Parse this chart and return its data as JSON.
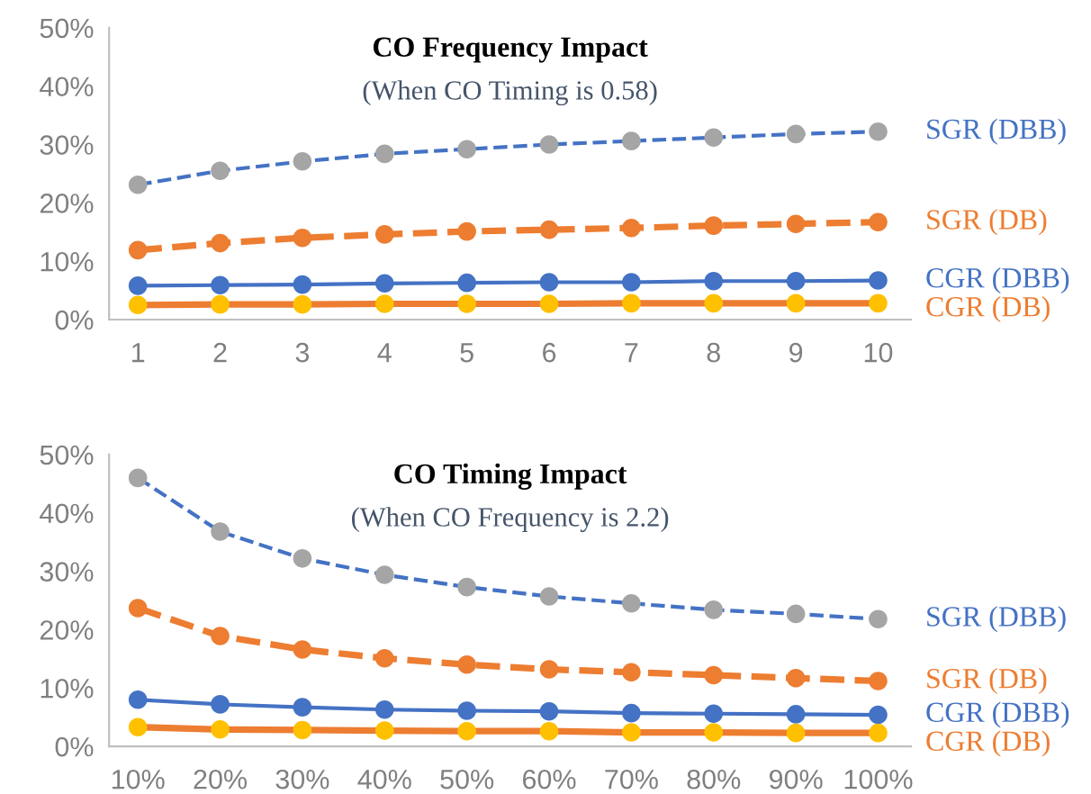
{
  "chart_data": [
    {
      "type": "line",
      "title": "CO Frequency Impact",
      "subtitle": "(When CO Timing is 0.58)",
      "categories": [
        "1",
        "2",
        "3",
        "4",
        "5",
        "6",
        "7",
        "8",
        "9",
        "10"
      ],
      "ylim": [
        0,
        50
      ],
      "yticks": [
        {
          "value": 0,
          "label": "0%"
        },
        {
          "value": 10,
          "label": "10%"
        },
        {
          "value": 20,
          "label": "20%"
        },
        {
          "value": 30,
          "label": "30%"
        },
        {
          "value": 40,
          "label": "40%"
        },
        {
          "value": 50,
          "label": "50%"
        }
      ],
      "grid": false,
      "legend": false,
      "marker": "circle",
      "series": [
        {
          "name": "SGR (DBB)",
          "color": "#4472c4",
          "colors": [
            "#a5a5a5",
            "#a5a5a5",
            "#a5a5a5",
            "#a5a5a5",
            "#a5a5a5",
            "#a5a5a5",
            "#a5a5a5",
            "#a5a5a5",
            "#a5a5a5",
            "#a5a5a5"
          ],
          "line_style": "dashed",
          "values": [
            23.1,
            25.5,
            27.1,
            28.4,
            29.2,
            30.0,
            30.6,
            31.2,
            31.8,
            32.2
          ]
        },
        {
          "name": "SGR (DB)",
          "color": "#ed7d31",
          "colors": [
            "#ed7d31",
            "#ed7d31",
            "#ed7d31",
            "#ed7d31",
            "#ed7d31",
            "#ed7d31",
            "#ed7d31",
            "#ed7d31",
            "#ed7d31",
            "#ed7d31"
          ],
          "line_style": "dashed",
          "values": [
            11.9,
            13.1,
            14.0,
            14.6,
            15.1,
            15.4,
            15.7,
            16.1,
            16.4,
            16.7
          ]
        },
        {
          "name": "CGR (DBB)",
          "color": "#4472c4",
          "colors": [
            "#4472c4",
            "#4472c4",
            "#4472c4",
            "#4472c4",
            "#4472c4",
            "#4472c4",
            "#4472c4",
            "#4472c4",
            "#4472c4",
            "#4472c4"
          ],
          "line_style": "solid",
          "values": [
            5.8,
            5.9,
            6.0,
            6.2,
            6.3,
            6.4,
            6.4,
            6.6,
            6.6,
            6.7
          ]
        },
        {
          "name": "CGR (DB)",
          "color": "#ed7d31",
          "colors": [
            "#ffc000",
            "#ffc000",
            "#ffc000",
            "#ffc000",
            "#ffc000",
            "#ffc000",
            "#ffc000",
            "#ffc000",
            "#ffc000",
            "#ffc000"
          ],
          "line_style": "solid",
          "values": [
            2.5,
            2.6,
            2.6,
            2.7,
            2.7,
            2.7,
            2.8,
            2.8,
            2.8,
            2.8
          ]
        }
      ]
    },
    {
      "type": "line",
      "title": "CO Timing Impact",
      "subtitle": "(When CO Frequency is 2.2)",
      "categories": [
        "10%",
        "20%",
        "30%",
        "40%",
        "50%",
        "60%",
        "70%",
        "80%",
        "90%",
        "100%"
      ],
      "ylim": [
        0,
        50
      ],
      "yticks": [
        {
          "value": 0,
          "label": "0%"
        },
        {
          "value": 10,
          "label": "10%"
        },
        {
          "value": 20,
          "label": "20%"
        },
        {
          "value": 30,
          "label": "30%"
        },
        {
          "value": 40,
          "label": "40%"
        },
        {
          "value": 50,
          "label": "50%"
        }
      ],
      "grid": false,
      "legend": false,
      "marker": "circle",
      "series": [
        {
          "name": "SGR (DBB)",
          "color": "#4472c4",
          "colors": [
            "#a5a5a5",
            "#a5a5a5",
            "#a5a5a5",
            "#a5a5a5",
            "#a5a5a5",
            "#a5a5a5",
            "#a5a5a5",
            "#a5a5a5",
            "#a5a5a5",
            "#a5a5a5"
          ],
          "line_style": "dashed",
          "values": [
            46.0,
            36.8,
            32.2,
            29.4,
            27.3,
            25.7,
            24.5,
            23.4,
            22.7,
            21.8
          ]
        },
        {
          "name": "SGR (DB)",
          "color": "#ed7d31",
          "colors": [
            "#ed7d31",
            "#ed7d31",
            "#ed7d31",
            "#ed7d31",
            "#ed7d31",
            "#ed7d31",
            "#ed7d31",
            "#ed7d31",
            "#ed7d31",
            "#ed7d31"
          ],
          "line_style": "dashed",
          "values": [
            23.7,
            18.9,
            16.6,
            15.1,
            14.0,
            13.2,
            12.7,
            12.2,
            11.7,
            11.2
          ]
        },
        {
          "name": "CGR (DBB)",
          "color": "#4472c4",
          "colors": [
            "#4472c4",
            "#4472c4",
            "#4472c4",
            "#4472c4",
            "#4472c4",
            "#4472c4",
            "#4472c4",
            "#4472c4",
            "#4472c4",
            "#4472c4"
          ],
          "line_style": "solid",
          "values": [
            8.0,
            7.2,
            6.7,
            6.3,
            6.1,
            6.0,
            5.7,
            5.6,
            5.5,
            5.4
          ]
        },
        {
          "name": "CGR (DB)",
          "color": "#ed7d31",
          "colors": [
            "#ffc000",
            "#ffc000",
            "#ffc000",
            "#ffc000",
            "#ffc000",
            "#ffc000",
            "#ffc000",
            "#ffc000",
            "#ffc000",
            "#ffc000"
          ],
          "line_style": "solid",
          "values": [
            3.3,
            2.9,
            2.8,
            2.7,
            2.6,
            2.6,
            2.4,
            2.4,
            2.3,
            2.3
          ]
        }
      ]
    }
  ]
}
